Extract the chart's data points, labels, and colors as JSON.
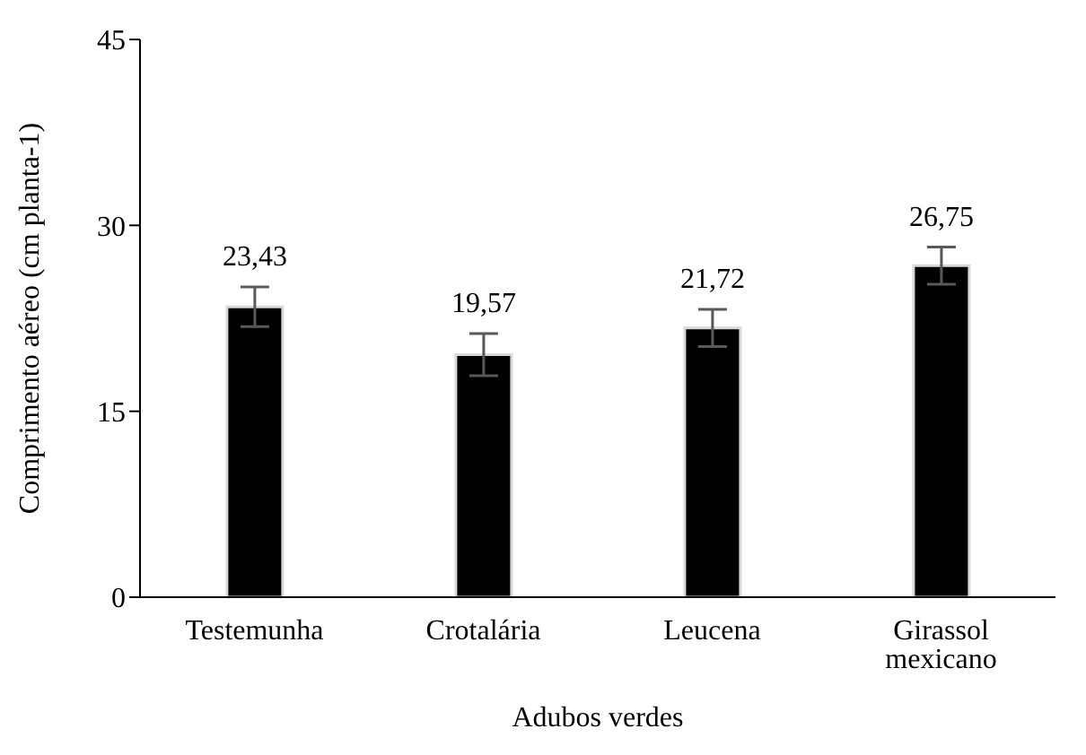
{
  "chart_data": {
    "type": "bar",
    "xlabel": "Adubos verdes",
    "ylabel": "Comprimento aéreo (cm planta-1)",
    "categories": [
      "Testemunha",
      "Crotalária",
      "Leucena",
      "Girassol mexicano"
    ],
    "values": [
      23.43,
      19.57,
      21.72,
      26.75
    ],
    "errors": [
      1.6,
      1.7,
      1.5,
      1.5
    ],
    "value_labels": [
      "23,43",
      "19,57",
      "21,72",
      "26,75"
    ],
    "color": "#000000",
    "ylim": [
      0,
      45
    ],
    "yticks": [
      0,
      15,
      30,
      45
    ],
    "grid": false,
    "legend": false
  }
}
